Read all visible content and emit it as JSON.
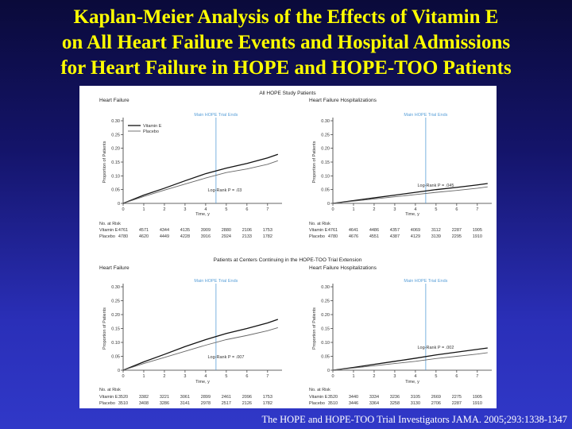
{
  "slide": {
    "title_lines": [
      "Kaplan-Meier Analysis of the Effects of Vitamin E",
      "on All Heart Failure Events and Hospital Admissions",
      "for Heart Failure in HOPE and HOPE-TOO Patients"
    ],
    "citation": "The HOPE and HOPE-TOO Trial Investigators JAMA. 2005;293:1338-1347",
    "colors": {
      "title": "#ffff00",
      "background_top": "#0a0a3a",
      "background_bottom": "#3038c8",
      "trial_end_line": "#5aa0d8"
    }
  },
  "figure": {
    "section_titles": [
      "All HOPE Study Patients",
      "Patients at Centers Continuing in the HOPE-TOO Trial Extension"
    ],
    "y_axis_label": "Proportion of Patients",
    "x_axis_label": "Time, y",
    "trial_end_label": "Main HOPE Trial Ends",
    "at_risk_label": "No. at Risk",
    "legend": [
      "Vitamin E",
      "Placebo"
    ]
  },
  "chart_data": [
    {
      "type": "line",
      "title": "Heart Failure",
      "section": "All HOPE Study Patients",
      "xlabel": "Time, y",
      "ylabel": "Proportion of Patients",
      "x": [
        0,
        1,
        2,
        3,
        4,
        5,
        6,
        7,
        7.5
      ],
      "xlim": [
        0,
        7.7
      ],
      "ylim": [
        0,
        0.3
      ],
      "xticks": [
        0,
        1,
        2,
        3,
        4,
        5,
        6,
        7
      ],
      "yticks": [
        "0",
        "0.05",
        "0.10",
        "0.15",
        "0.20",
        "0.25",
        "0.30"
      ],
      "trial_end_x": 4.5,
      "annotation": "Log-Rank P = .03",
      "legend": "top-left",
      "series": [
        {
          "name": "Vitamin E",
          "values": [
            0,
            0.03,
            0.055,
            0.082,
            0.108,
            0.128,
            0.145,
            0.165,
            0.178
          ]
        },
        {
          "name": "Placebo",
          "values": [
            0,
            0.025,
            0.048,
            0.07,
            0.092,
            0.112,
            0.125,
            0.142,
            0.155
          ]
        }
      ],
      "at_risk": [
        {
          "group": "Vitamin E",
          "counts": [
            "4761",
            "4571",
            "4344",
            "4135",
            "3909",
            "2880",
            "2106",
            "1753"
          ]
        },
        {
          "group": "Placebo",
          "counts": [
            "4780",
            "4620",
            "4449",
            "4228",
            "3916",
            "2924",
            "2133",
            "1782"
          ]
        }
      ]
    },
    {
      "type": "line",
      "title": "Heart Failure Hospitalizations",
      "section": "All HOPE Study Patients",
      "xlabel": "Time, y",
      "ylabel": "Proportion of Patients",
      "x": [
        0,
        1,
        2,
        3,
        4,
        5,
        6,
        7,
        7.5
      ],
      "xlim": [
        0,
        7.7
      ],
      "ylim": [
        0,
        0.3
      ],
      "xticks": [
        0,
        1,
        2,
        3,
        4,
        5,
        6,
        7
      ],
      "yticks": [
        "0",
        "0.05",
        "0.10",
        "0.15",
        "0.20",
        "0.25",
        "0.30"
      ],
      "trial_end_x": 4.5,
      "annotation": "Log-Rank P = .045",
      "legend": "none",
      "series": [
        {
          "name": "Vitamin E",
          "values": [
            0,
            0.01,
            0.02,
            0.03,
            0.04,
            0.05,
            0.058,
            0.067,
            0.072
          ]
        },
        {
          "name": "Placebo",
          "values": [
            0,
            0.008,
            0.016,
            0.024,
            0.032,
            0.04,
            0.047,
            0.055,
            0.06
          ]
        }
      ],
      "at_risk": [
        {
          "group": "Vitamin E",
          "counts": [
            "4761",
            "4641",
            "4486",
            "4357",
            "4069",
            "3112",
            "2287",
            "1905"
          ]
        },
        {
          "group": "Placebo",
          "counts": [
            "4780",
            "4676",
            "4551",
            "4387",
            "4129",
            "3139",
            "2295",
            "1910"
          ]
        }
      ]
    },
    {
      "type": "line",
      "title": "Heart Failure",
      "section": "Patients at Centers Continuing in the HOPE-TOO Trial Extension",
      "xlabel": "Time, y",
      "ylabel": "Proportion of Patients",
      "x": [
        0,
        1,
        2,
        3,
        4,
        5,
        6,
        7,
        7.5
      ],
      "xlim": [
        0,
        7.7
      ],
      "ylim": [
        0,
        0.3
      ],
      "xticks": [
        0,
        1,
        2,
        3,
        4,
        5,
        6,
        7
      ],
      "yticks": [
        "0",
        "0.05",
        "0.10",
        "0.15",
        "0.20",
        "0.25",
        "0.30"
      ],
      "trial_end_x": 4.5,
      "annotation": "Log-Rank P = .007",
      "legend": "none",
      "series": [
        {
          "name": "Vitamin E",
          "values": [
            0,
            0.03,
            0.057,
            0.085,
            0.11,
            0.132,
            0.15,
            0.17,
            0.183
          ]
        },
        {
          "name": "Placebo",
          "values": [
            0,
            0.024,
            0.046,
            0.068,
            0.09,
            0.11,
            0.125,
            0.142,
            0.153
          ]
        }
      ],
      "at_risk": [
        {
          "group": "Vitamin E",
          "counts": [
            "3520",
            "3382",
            "3221",
            "3061",
            "2899",
            "2461",
            "2096",
            "1753"
          ]
        },
        {
          "group": "Placebo",
          "counts": [
            "3510",
            "3408",
            "3286",
            "3141",
            "2978",
            "2517",
            "2126",
            "1782"
          ]
        }
      ]
    },
    {
      "type": "line",
      "title": "Heart Failure Hospitalizations",
      "section": "Patients at Centers Continuing in the HOPE-TOO Trial Extension",
      "xlabel": "Time, y",
      "ylabel": "Proportion of Patients",
      "x": [
        0,
        1,
        2,
        3,
        4,
        5,
        6,
        7,
        7.5
      ],
      "xlim": [
        0,
        7.7
      ],
      "ylim": [
        0,
        0.3
      ],
      "xticks": [
        0,
        1,
        2,
        3,
        4,
        5,
        6,
        7
      ],
      "yticks": [
        "0",
        "0.05",
        "0.10",
        "0.15",
        "0.20",
        "0.25",
        "0.30"
      ],
      "trial_end_x": 4.5,
      "annotation": "Log-Rank P = .002",
      "legend": "none",
      "series": [
        {
          "name": "Vitamin E",
          "values": [
            0,
            0.01,
            0.021,
            0.032,
            0.043,
            0.055,
            0.065,
            0.075,
            0.08
          ]
        },
        {
          "name": "Placebo",
          "values": [
            0,
            0.008,
            0.016,
            0.024,
            0.032,
            0.042,
            0.05,
            0.058,
            0.063
          ]
        }
      ],
      "at_risk": [
        {
          "group": "Vitamin E",
          "counts": [
            "3520",
            "3440",
            "3334",
            "3236",
            "3105",
            "2669",
            "2275",
            "1905"
          ]
        },
        {
          "group": "Placebo",
          "counts": [
            "3510",
            "3446",
            "3364",
            "3258",
            "3130",
            "2706",
            "2287",
            "1910"
          ]
        }
      ]
    }
  ]
}
